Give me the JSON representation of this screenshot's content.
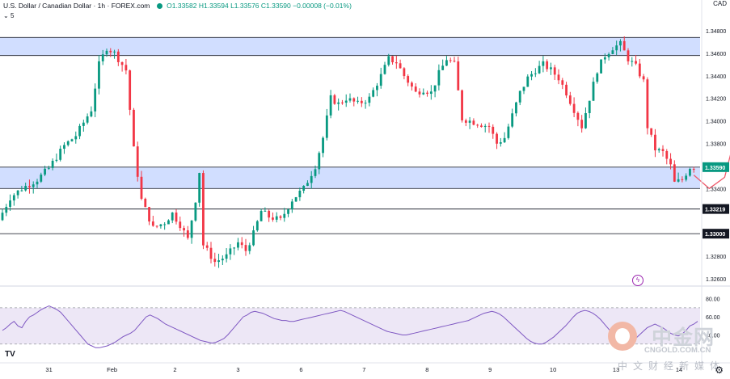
{
  "header": {
    "symbol": "U.S. Dollar / Canadian Dollar · 1h · FOREX.com",
    "ohlc": "O1.33582 H1.33594 L1.33576 C1.33590 −0.00008 (−0.01%)",
    "indicator_count": "5"
  },
  "currency": "CAD",
  "watermark": {
    "cn": "中金网",
    "url": "CNGOLD.COM.CN",
    "sub": "中文财经新媒体"
  },
  "colors": {
    "up": "#089981",
    "down": "#f23645",
    "zone": "#c9d8ff",
    "rsi_line": "#7e57c2",
    "rsi_band": "#ede7f6",
    "projection": "#f05a6b"
  },
  "chart_data": {
    "type": "candlestick",
    "title": "U.S. Dollar / Canadian Dollar · 1h · FOREX.com",
    "ylim": [
      1.3255,
      1.35
    ],
    "y_ticks": [
      "1.34800",
      "1.34600",
      "1.34400",
      "1.34200",
      "1.34000",
      "1.33800",
      "1.33600",
      "1.33400",
      "1.33200",
      "1.33000",
      "1.32800",
      "1.32600"
    ],
    "x_ticks": [
      [
        "31",
        0.07
      ],
      [
        "Feb",
        0.16
      ],
      [
        "2",
        0.25
      ],
      [
        "3",
        0.34
      ],
      [
        "6",
        0.43
      ],
      [
        "7",
        0.52
      ],
      [
        "8",
        0.61
      ],
      [
        "9",
        0.7
      ],
      [
        "10",
        0.79
      ],
      [
        "13",
        0.88
      ],
      [
        "14",
        0.97
      ]
    ],
    "price_path": [
      [
        0,
        1.3312
      ],
      [
        3,
        1.3332
      ],
      [
        6,
        1.334
      ],
      [
        10,
        1.3348
      ],
      [
        13,
        1.3358
      ],
      [
        17,
        1.3378
      ],
      [
        20,
        1.3387
      ],
      [
        24,
        1.341
      ],
      [
        26,
        1.345
      ],
      [
        28,
        1.3465
      ],
      [
        30,
        1.346
      ],
      [
        33,
        1.3445
      ],
      [
        35,
        1.3375
      ],
      [
        37,
        1.333
      ],
      [
        40,
        1.3305
      ],
      [
        43,
        1.331
      ],
      [
        45,
        1.3318
      ],
      [
        47,
        1.3308
      ],
      [
        49,
        1.3295
      ],
      [
        51,
        1.333
      ],
      [
        52,
        1.3355
      ],
      [
        53,
        1.329
      ],
      [
        56,
        1.3275
      ],
      [
        59,
        1.328
      ],
      [
        62,
        1.3292
      ],
      [
        64,
        1.3285
      ],
      [
        66,
        1.33
      ],
      [
        68,
        1.332
      ],
      [
        70,
        1.3315
      ],
      [
        73,
        1.3312
      ],
      [
        76,
        1.333
      ],
      [
        79,
        1.334
      ],
      [
        82,
        1.336
      ],
      [
        84,
        1.3385
      ],
      [
        86,
        1.342
      ],
      [
        88,
        1.3415
      ],
      [
        90,
        1.342
      ],
      [
        93,
        1.3415
      ],
      [
        96,
        1.342
      ],
      [
        99,
        1.344
      ],
      [
        101,
        1.3455
      ],
      [
        103,
        1.3452
      ],
      [
        105,
        1.344
      ],
      [
        108,
        1.3425
      ],
      [
        110,
        1.3428
      ],
      [
        112,
        1.3425
      ],
      [
        114,
        1.3442
      ],
      [
        116,
        1.3455
      ],
      [
        118,
        1.345
      ],
      [
        120,
        1.3402
      ],
      [
        122,
        1.34
      ],
      [
        124,
        1.3398
      ],
      [
        127,
        1.3395
      ],
      [
        129,
        1.338
      ],
      [
        131,
        1.3385
      ],
      [
        133,
        1.3405
      ],
      [
        135,
        1.3425
      ],
      [
        137,
        1.3438
      ],
      [
        139,
        1.3445
      ],
      [
        141,
        1.345
      ],
      [
        143,
        1.3445
      ],
      [
        145,
        1.3438
      ],
      [
        147,
        1.3425
      ],
      [
        149,
        1.341
      ],
      [
        151,
        1.3395
      ],
      [
        153,
        1.342
      ],
      [
        155,
        1.3445
      ],
      [
        157,
        1.3458
      ],
      [
        159,
        1.3465
      ],
      [
        161,
        1.3468
      ],
      [
        163,
        1.3455
      ],
      [
        165,
        1.3448
      ],
      [
        167,
        1.3435
      ],
      [
        168,
        1.3395
      ],
      [
        170,
        1.3375
      ],
      [
        172,
        1.3372
      ],
      [
        174,
        1.336
      ],
      [
        175,
        1.3345
      ],
      [
        177,
        1.3348
      ],
      [
        179,
        1.3359
      ]
    ],
    "zones": [
      {
        "from": 1.3458,
        "to": 1.3474
      },
      {
        "from": 1.334,
        "to": 1.3359
      }
    ],
    "levels": [
      {
        "value": 1.33219,
        "label": "1.33219"
      },
      {
        "value": 1.33,
        "label": "1.33000"
      }
    ],
    "current_price": {
      "value": 1.3359,
      "label": "1.33590"
    },
    "projection": [
      [
        179,
        1.3352
      ],
      [
        183,
        1.334
      ],
      [
        187,
        1.335
      ],
      [
        190,
        1.339
      ],
      [
        193,
        1.344
      ]
    ],
    "rsi": {
      "ylim": [
        20,
        85
      ],
      "ticks": [
        "80.00",
        "60.00",
        "40.00"
      ],
      "band": [
        30,
        70
      ],
      "values": [
        45,
        48,
        52,
        55,
        50,
        48,
        55,
        60,
        62,
        65,
        68,
        70,
        72,
        70,
        68,
        65,
        60,
        55,
        50,
        45,
        40,
        35,
        30,
        28,
        26,
        26,
        27,
        28,
        30,
        32,
        35,
        38,
        40,
        42,
        45,
        50,
        55,
        60,
        62,
        60,
        58,
        55,
        52,
        50,
        48,
        46,
        44,
        42,
        40,
        38,
        36,
        34,
        33,
        32,
        31,
        32,
        34,
        36,
        40,
        45,
        50,
        55,
        60,
        62,
        65,
        66,
        65,
        64,
        62,
        60,
        58,
        57,
        56,
        56,
        55,
        55,
        56,
        57,
        58,
        59,
        60,
        61,
        62,
        63,
        64,
        65,
        66,
        67,
        66,
        64,
        62,
        60,
        58,
        56,
        54,
        52,
        50,
        48,
        46,
        44,
        43,
        42,
        41,
        40,
        40,
        41,
        42,
        43,
        44,
        45,
        46,
        47,
        48,
        49,
        50,
        51,
        52,
        53,
        54,
        55,
        56,
        58,
        60,
        62,
        64,
        65,
        66,
        65,
        63,
        60,
        56,
        52,
        48,
        44,
        40,
        36,
        33,
        31,
        30,
        30,
        32,
        35,
        38,
        42,
        46,
        50,
        55,
        60,
        64,
        66,
        67,
        66,
        64,
        61,
        57,
        52,
        47,
        42,
        38,
        35,
        33,
        32,
        33,
        36,
        40,
        44,
        48,
        50,
        52,
        50,
        48,
        45,
        42,
        40,
        39,
        41,
        45,
        50,
        52,
        55
      ]
    },
    "rsi_ticks": [
      "80.00",
      "60.00",
      "40.00"
    ]
  }
}
